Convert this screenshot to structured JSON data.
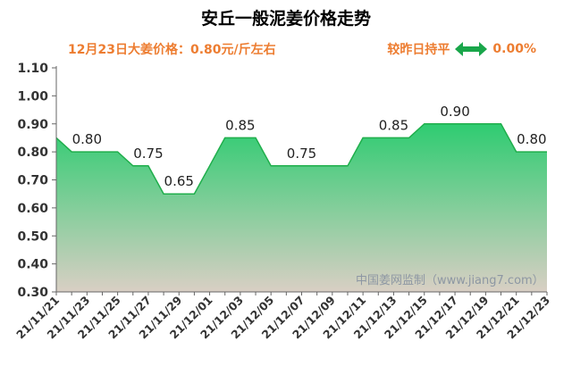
{
  "header": {
    "title": "安丘一般泥姜价格走势",
    "price_text": "12月23日大姜价格：0.80元/斤左右",
    "change_label": "较昨日持平",
    "change_value": "0.00%",
    "change_icon": "double-arrow-icon"
  },
  "watermark": "中国姜网监制（www.jiang7.com）",
  "colors": {
    "fill_top": "#2ecc71",
    "fill_bottom": "#d9cfc4",
    "line": "#1fae4b",
    "accent_text": "#ed7d31",
    "arrow": "#19a64a"
  },
  "chart_data": {
    "type": "area",
    "title": "安丘一般泥姜价格走势",
    "x": [
      "21/11/21",
      "21/11/22",
      "21/11/23",
      "21/11/24",
      "21/11/25",
      "21/11/26",
      "21/11/27",
      "21/11/28",
      "21/11/29",
      "21/11/30",
      "21/12/01",
      "21/12/02",
      "21/12/03",
      "21/12/04",
      "21/12/05",
      "21/12/06",
      "21/12/07",
      "21/12/08",
      "21/12/09",
      "21/12/10",
      "21/12/11",
      "21/12/12",
      "21/12/13",
      "21/12/14",
      "21/12/15",
      "21/12/16",
      "21/12/17",
      "21/12/18",
      "21/12/19",
      "21/12/20",
      "21/12/21",
      "21/12/22",
      "21/12/23"
    ],
    "x_tick_labels": [
      "21/11/21",
      "21/11/23",
      "21/11/25",
      "21/11/27",
      "21/11/29",
      "21/12/01",
      "21/12/03",
      "21/12/05",
      "21/12/07",
      "21/12/09",
      "21/12/11",
      "21/12/13",
      "21/12/15",
      "21/12/17",
      "21/12/19",
      "21/12/21",
      "21/12/23"
    ],
    "values": [
      0.85,
      0.8,
      0.8,
      0.8,
      0.8,
      0.75,
      0.75,
      0.65,
      0.65,
      0.65,
      0.75,
      0.85,
      0.85,
      0.85,
      0.75,
      0.75,
      0.75,
      0.75,
      0.75,
      0.75,
      0.85,
      0.85,
      0.85,
      0.85,
      0.9,
      0.9,
      0.9,
      0.9,
      0.9,
      0.9,
      0.8,
      0.8,
      0.8
    ],
    "data_labels": [
      {
        "x": "21/11/23",
        "text": "0.80"
      },
      {
        "x": "21/11/27",
        "text": "0.75"
      },
      {
        "x": "21/11/29",
        "text": "0.65"
      },
      {
        "x": "21/12/03",
        "text": "0.85"
      },
      {
        "x": "21/12/07",
        "text": "0.75"
      },
      {
        "x": "21/12/13",
        "text": "0.85"
      },
      {
        "x": "21/12/17",
        "text": "0.90"
      },
      {
        "x": "21/12/22",
        "text": "0.80"
      }
    ],
    "y_ticks": [
      "0.30",
      "0.40",
      "0.50",
      "0.60",
      "0.70",
      "0.80",
      "0.90",
      "1.00",
      "1.10"
    ],
    "ylim": [
      0.3,
      1.1
    ],
    "grid": false,
    "xlabel": "",
    "ylabel": ""
  }
}
